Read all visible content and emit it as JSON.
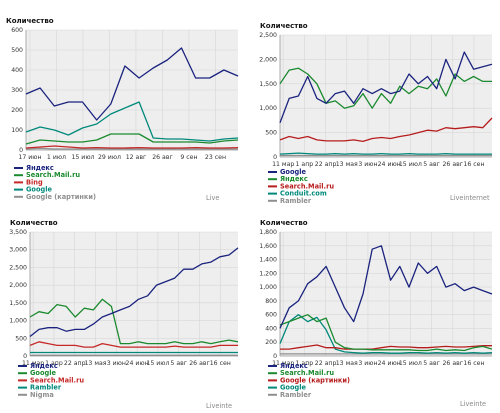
{
  "chart_data": [
    {
      "type": "line",
      "ylabel": "Количество",
      "ylim": [
        0,
        600
      ],
      "yticks": [
        "0",
        "100",
        "200",
        "300",
        "400",
        "500",
        "600"
      ],
      "xtick_labels": [
        "17 июн",
        "1 июл",
        "15 июл",
        "29 июл",
        "12 авг",
        "26 авг",
        "9 сен",
        "23 сен"
      ],
      "watermark": "Live",
      "grid": true,
      "legend_position": "bottom-left",
      "series": [
        {
          "name": "Яндекс",
          "color": "#1a237e",
          "values": [
            280,
            310,
            220,
            240,
            240,
            150,
            230,
            420,
            360,
            410,
            450,
            510,
            360,
            360,
            400,
            370
          ]
        },
        {
          "name": "Search.Mail.ru",
          "color": "#1b8a2e",
          "values": [
            30,
            50,
            45,
            40,
            40,
            50,
            80,
            80,
            80,
            40,
            40,
            40,
            40,
            35,
            45,
            50
          ]
        },
        {
          "name": "Bing",
          "color": "#c62828",
          "values": [
            10,
            15,
            20,
            15,
            10,
            12,
            10,
            10,
            12,
            10,
            10,
            10,
            12,
            10,
            10,
            12
          ]
        },
        {
          "name": "Google",
          "color": "#00897b",
          "values": [
            90,
            115,
            100,
            75,
            110,
            130,
            180,
            210,
            240,
            60,
            55,
            55,
            50,
            45,
            55,
            60
          ]
        },
        {
          "name": "Google (картинки)",
          "color": "#8f8f8f",
          "values": [
            5,
            8,
            5,
            5,
            5,
            5,
            5,
            5,
            5,
            5,
            5,
            5,
            5,
            5,
            5,
            5
          ]
        }
      ]
    },
    {
      "type": "line",
      "ylabel": "Количество",
      "ylim": [
        0,
        2500
      ],
      "yticks": [
        "0",
        "500",
        "1,000",
        "1,500",
        "2,000",
        "2,500"
      ],
      "xtick_labels": [
        "11 мар",
        "1 апр",
        "22 апр",
        "13 мая",
        "3 июн",
        "24 июн",
        "15 июл",
        "5 авг",
        "26 авг",
        "16 сен"
      ],
      "watermark": "Liveinternet",
      "grid": true,
      "legend_position": "bottom-left",
      "series": [
        {
          "name": "Google",
          "color": "#1a237e",
          "values": [
            700,
            1200,
            1250,
            1650,
            1200,
            1100,
            1300,
            1350,
            1100,
            1400,
            1300,
            1400,
            1300,
            1350,
            1700,
            1500,
            1650,
            1400,
            2000,
            1600,
            2150,
            1800,
            1850,
            1900
          ]
        },
        {
          "name": "Яндекс",
          "color": "#1b8a2e",
          "values": [
            1500,
            1780,
            1820,
            1700,
            1500,
            1100,
            1150,
            1000,
            1050,
            1300,
            1000,
            1300,
            1100,
            1450,
            1300,
            1450,
            1400,
            1600,
            1250,
            1700,
            1550,
            1650,
            1550,
            1550
          ]
        },
        {
          "name": "Search.Mail.ru",
          "color": "#b71c1c",
          "values": [
            350,
            420,
            380,
            420,
            350,
            330,
            330,
            330,
            350,
            320,
            380,
            400,
            380,
            420,
            450,
            500,
            550,
            530,
            600,
            580,
            600,
            620,
            600,
            800
          ]
        },
        {
          "name": "Conduit.com",
          "color": "#00897b",
          "values": [
            60,
            70,
            80,
            70,
            60,
            60,
            70,
            60,
            70,
            60,
            60,
            70,
            60,
            60,
            70,
            60,
            60,
            60,
            70,
            60,
            60,
            60,
            60,
            60
          ]
        },
        {
          "name": "Rambler",
          "color": "#8f8f8f",
          "values": [
            30,
            30,
            30,
            30,
            30,
            30,
            30,
            30,
            30,
            30,
            30,
            30,
            30,
            30,
            30,
            30,
            30,
            30,
            30,
            30,
            30,
            30,
            30,
            30
          ]
        }
      ]
    },
    {
      "type": "line",
      "ylabel": "Количество",
      "ylim": [
        0,
        3500
      ],
      "yticks": [
        "0",
        "500",
        "1,000",
        "1,500",
        "2,000",
        "2,500",
        "3,000",
        "3,500"
      ],
      "xtick_labels": [
        "11 мар",
        "1 апр",
        "22 апр",
        "13 мая",
        "3 июн",
        "24 июн",
        "15 июл",
        "5 авг",
        "26 авг",
        "16 сен"
      ],
      "watermark": "Liveinte",
      "grid": true,
      "legend_position": "bottom-left",
      "series": [
        {
          "name": "Яндекс",
          "color": "#1a237e",
          "values": [
            550,
            750,
            800,
            800,
            700,
            750,
            750,
            900,
            1100,
            1200,
            1300,
            1400,
            1600,
            1700,
            2000,
            2100,
            2200,
            2450,
            2450,
            2600,
            2650,
            2800,
            2850,
            3050
          ]
        },
        {
          "name": "Google",
          "color": "#1b8a2e",
          "values": [
            1100,
            1250,
            1200,
            1450,
            1400,
            1100,
            1350,
            1300,
            1600,
            1400,
            350,
            350,
            400,
            350,
            350,
            350,
            400,
            350,
            350,
            400,
            350,
            400,
            450,
            400
          ]
        },
        {
          "name": "Search.Mail.ru",
          "color": "#c62828",
          "values": [
            300,
            400,
            350,
            300,
            300,
            300,
            250,
            250,
            350,
            300,
            250,
            250,
            250,
            250,
            250,
            250,
            280,
            250,
            250,
            250,
            250,
            300,
            300,
            300
          ]
        },
        {
          "name": "Rambler",
          "color": "#00897b",
          "values": [
            100,
            100,
            100,
            100,
            100,
            100,
            100,
            100,
            100,
            100,
            100,
            100,
            100,
            100,
            100,
            100,
            100,
            100,
            100,
            100,
            100,
            100,
            100,
            100
          ]
        },
        {
          "name": "Nigma",
          "color": "#8f8f8f",
          "values": [
            20,
            20,
            20,
            20,
            20,
            20,
            20,
            20,
            20,
            20,
            20,
            20,
            20,
            20,
            20,
            20,
            20,
            20,
            20,
            20,
            20,
            20,
            20,
            20
          ]
        }
      ]
    },
    {
      "type": "line",
      "ylabel": "Количество",
      "ylim": [
        0,
        1800
      ],
      "yticks": [
        "0",
        "200",
        "400",
        "600",
        "800",
        "1,000",
        "1,200",
        "1,400",
        "1,600",
        "1,800"
      ],
      "xtick_labels": [
        "11 мар",
        "1 апр",
        "22 апр",
        "13 мая",
        "3 июн",
        "24 июн",
        "15 июл",
        "5 авг",
        "26 авг",
        "16 сен"
      ],
      "watermark": "Liveinte",
      "grid": true,
      "legend_position": "bottom-left",
      "series": [
        {
          "name": "Яндекс",
          "color": "#1a237e",
          "values": [
            400,
            700,
            800,
            1050,
            1150,
            1300,
            1000,
            700,
            500,
            900,
            1550,
            1600,
            1100,
            1300,
            1000,
            1350,
            1200,
            1300,
            1000,
            1050,
            950,
            1000,
            950,
            900
          ]
        },
        {
          "name": "Search.Mail.ru",
          "color": "#1b8a2e",
          "values": [
            450,
            500,
            550,
            600,
            500,
            550,
            200,
            120,
            100,
            100,
            90,
            90,
            90,
            90,
            90,
            80,
            80,
            100,
            80,
            90,
            80,
            120,
            140,
            100
          ]
        },
        {
          "name": "Google (картинки)",
          "color": "#b71c1c",
          "values": [
            100,
            100,
            120,
            140,
            160,
            120,
            120,
            100,
            100,
            100,
            100,
            120,
            140,
            130,
            130,
            120,
            120,
            130,
            140,
            130,
            130,
            140,
            150,
            150
          ]
        },
        {
          "name": "Google",
          "color": "#00897b",
          "values": [
            180,
            500,
            600,
            500,
            560,
            380,
            100,
            60,
            50,
            40,
            50,
            50,
            40,
            40,
            50,
            50,
            40,
            50,
            40,
            50,
            40,
            50,
            40,
            50
          ]
        },
        {
          "name": "Rambler",
          "color": "#8f8f8f",
          "values": [
            30,
            30,
            30,
            30,
            30,
            30,
            30,
            30,
            30,
            30,
            30,
            30,
            30,
            30,
            30,
            30,
            30,
            30,
            30,
            30,
            30,
            30,
            30,
            30
          ]
        }
      ]
    }
  ]
}
